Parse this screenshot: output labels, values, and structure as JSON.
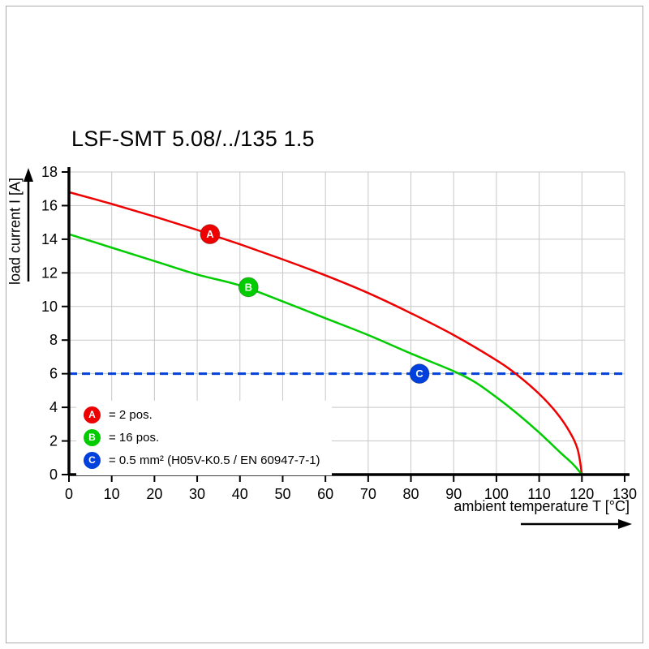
{
  "frame": {
    "border_color": "#aaaaaa",
    "background": "#ffffff"
  },
  "chart_data": {
    "type": "line",
    "title": "LSF-SMT 5.08/../135 1.5",
    "xlabel": "ambient temperature T [°C]",
    "ylabel": "load current I [A]",
    "xlim": [
      0,
      130
    ],
    "ylim": [
      0,
      18
    ],
    "xticks": [
      0,
      10,
      20,
      30,
      40,
      50,
      60,
      70,
      80,
      90,
      100,
      110,
      120,
      130
    ],
    "yticks": [
      0,
      2,
      4,
      6,
      8,
      10,
      12,
      14,
      16,
      18
    ],
    "grid": true,
    "grid_color": "#c8c8c8",
    "axis_color": "#000000",
    "series": [
      {
        "name": "A",
        "label": "= 2 pos.",
        "color": "#ee0000",
        "marker": {
          "x": 33,
          "y": 14.3,
          "letter": "A"
        },
        "points": [
          [
            0,
            16.8
          ],
          [
            10,
            16.1
          ],
          [
            20,
            15.35
          ],
          [
            30,
            14.55
          ],
          [
            40,
            13.7
          ],
          [
            50,
            12.8
          ],
          [
            60,
            11.85
          ],
          [
            70,
            10.8
          ],
          [
            80,
            9.6
          ],
          [
            90,
            8.3
          ],
          [
            100,
            6.8
          ],
          [
            105,
            5.9
          ],
          [
            110,
            4.8
          ],
          [
            114,
            3.7
          ],
          [
            117,
            2.6
          ],
          [
            119,
            1.5
          ],
          [
            120,
            0
          ]
        ]
      },
      {
        "name": "B",
        "label": "= 16 pos.",
        "color": "#00cc00",
        "marker": {
          "x": 42,
          "y": 11.15,
          "letter": "B"
        },
        "points": [
          [
            0,
            14.3
          ],
          [
            10,
            13.5
          ],
          [
            20,
            12.7
          ],
          [
            30,
            11.9
          ],
          [
            40,
            11.25
          ],
          [
            50,
            10.3
          ],
          [
            60,
            9.3
          ],
          [
            70,
            8.3
          ],
          [
            80,
            7.2
          ],
          [
            90,
            6.15
          ],
          [
            95,
            5.5
          ],
          [
            100,
            4.6
          ],
          [
            105,
            3.6
          ],
          [
            110,
            2.5
          ],
          [
            115,
            1.3
          ],
          [
            118,
            0.6
          ],
          [
            120,
            0
          ]
        ]
      }
    ],
    "reference_line": {
      "name": "C",
      "label": "= 0.5 mm² (H05V-K0.5 / EN 60947-7-1)",
      "color": "#0040dd",
      "y": 6,
      "style": "dashed",
      "marker": {
        "x": 82,
        "y": 6,
        "letter": "C"
      }
    },
    "legend": [
      {
        "letter": "A",
        "color": "#ee0000",
        "label": "= 2 pos."
      },
      {
        "letter": "B",
        "color": "#00cc00",
        "label": "= 16 pos."
      },
      {
        "letter": "C",
        "color": "#0040dd",
        "label": "= 0.5 mm² (H05V-K0.5 / EN 60947-7-1)"
      }
    ],
    "legend_position": "bottom-left-inside"
  }
}
